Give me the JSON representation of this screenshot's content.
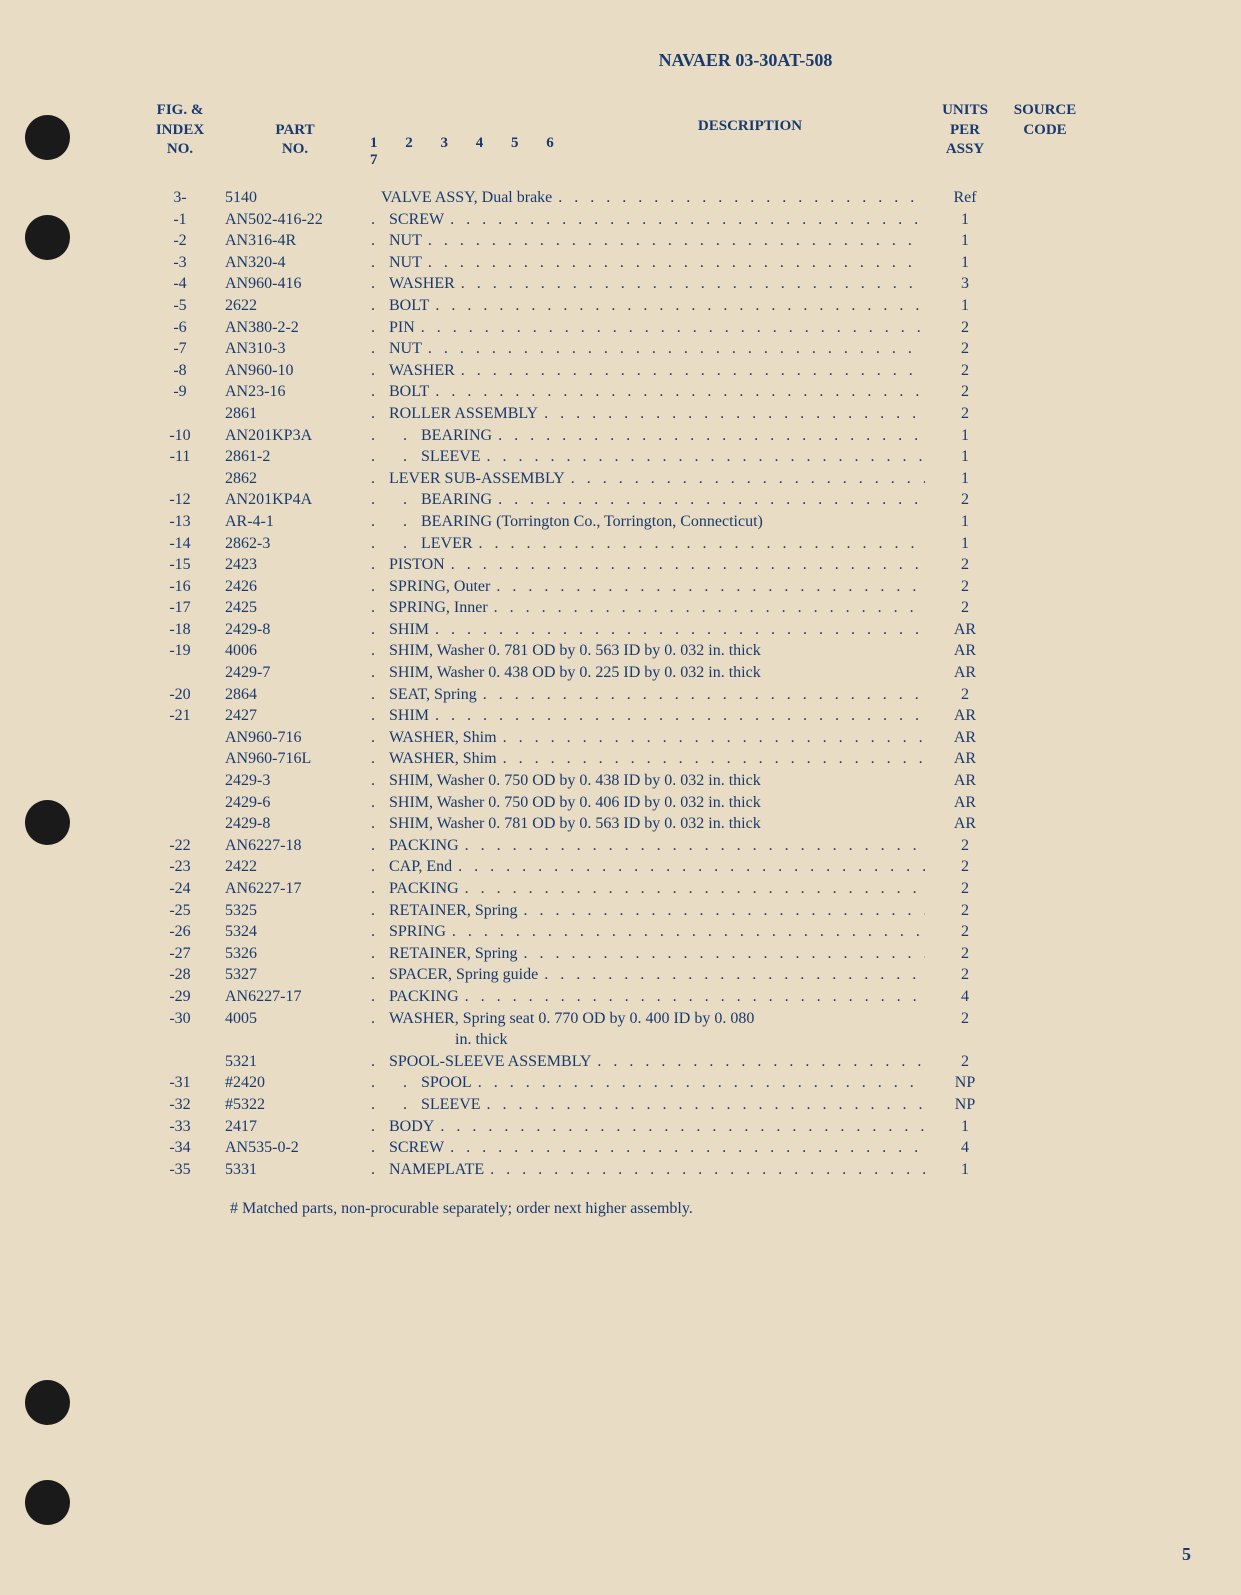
{
  "document_header": "NAVAER 03-30AT-508",
  "headers": {
    "fig": "FIG. &\nINDEX\nNO.",
    "part": "PART\nNO.",
    "description": "DESCRIPTION",
    "indent_nums": "1 2 3 4 5 6 7",
    "units": "UNITS\nPER\nASSY",
    "source": "SOURCE\nCODE"
  },
  "rows": [
    {
      "fig": "3-",
      "part": "5140",
      "indent": 1,
      "desc": "VALVE ASSY, Dual brake",
      "dots": true,
      "units": "Ref",
      "source": ""
    },
    {
      "fig": "-1",
      "part": "AN502-416-22",
      "indent": 2,
      "desc": "SCREW",
      "dots": true,
      "units": "1",
      "source": ""
    },
    {
      "fig": "-2",
      "part": "AN316-4R",
      "indent": 2,
      "desc": "NUT",
      "dots": true,
      "units": "1",
      "source": ""
    },
    {
      "fig": "-3",
      "part": "AN320-4",
      "indent": 2,
      "desc": "NUT",
      "dots": true,
      "units": "1",
      "source": ""
    },
    {
      "fig": "-4",
      "part": "AN960-416",
      "indent": 2,
      "desc": "WASHER",
      "dots": true,
      "units": "3",
      "source": ""
    },
    {
      "fig": "-5",
      "part": "2622",
      "indent": 2,
      "desc": "BOLT",
      "dots": true,
      "units": "1",
      "source": ""
    },
    {
      "fig": "-6",
      "part": "AN380-2-2",
      "indent": 2,
      "desc": "PIN",
      "dots": true,
      "units": "2",
      "source": ""
    },
    {
      "fig": "-7",
      "part": "AN310-3",
      "indent": 2,
      "desc": "NUT",
      "dots": true,
      "units": "2",
      "source": ""
    },
    {
      "fig": "-8",
      "part": "AN960-10",
      "indent": 2,
      "desc": "WASHER",
      "dots": true,
      "units": "2",
      "source": ""
    },
    {
      "fig": "-9",
      "part": "AN23-16",
      "indent": 2,
      "desc": "BOLT",
      "dots": true,
      "units": "2",
      "source": ""
    },
    {
      "fig": "",
      "part": "2861",
      "indent": 2,
      "desc": "ROLLER ASSEMBLY",
      "dots": true,
      "units": "2",
      "source": ""
    },
    {
      "fig": "-10",
      "part": "AN201KP3A",
      "indent": 3,
      "desc": "BEARING",
      "dots": true,
      "units": "1",
      "source": ""
    },
    {
      "fig": "-11",
      "part": "2861-2",
      "indent": 3,
      "desc": "SLEEVE",
      "dots": true,
      "units": "1",
      "source": ""
    },
    {
      "fig": "",
      "part": "2862",
      "indent": 2,
      "desc": "LEVER SUB-ASSEMBLY",
      "dots": true,
      "units": "1",
      "source": ""
    },
    {
      "fig": "-12",
      "part": "AN201KP4A",
      "indent": 3,
      "desc": "BEARING",
      "dots": true,
      "units": "2",
      "source": ""
    },
    {
      "fig": "-13",
      "part": "AR-4-1",
      "indent": 3,
      "desc": "BEARING (Torrington Co., Torrington, Connecticut)",
      "dots": false,
      "units": "1",
      "source": ""
    },
    {
      "fig": "-14",
      "part": "2862-3",
      "indent": 3,
      "desc": "LEVER",
      "dots": true,
      "units": "1",
      "source": ""
    },
    {
      "fig": "-15",
      "part": "2423",
      "indent": 2,
      "desc": "PISTON",
      "dots": true,
      "units": "2",
      "source": ""
    },
    {
      "fig": "-16",
      "part": "2426",
      "indent": 2,
      "desc": "SPRING, Outer",
      "dots": true,
      "units": "2",
      "source": ""
    },
    {
      "fig": "-17",
      "part": "2425",
      "indent": 2,
      "desc": "SPRING, Inner",
      "dots": true,
      "units": "2",
      "source": ""
    },
    {
      "fig": "-18",
      "part": "2429-8",
      "indent": 2,
      "desc": "SHIM",
      "dots": true,
      "units": "AR",
      "source": ""
    },
    {
      "fig": "-19",
      "part": "4006",
      "indent": 2,
      "desc": "SHIM, Washer 0. 781 OD by 0. 563 ID by 0. 032 in. thick",
      "dots": false,
      "units": "AR",
      "source": ""
    },
    {
      "fig": "",
      "part": "2429-7",
      "indent": 2,
      "desc": "SHIM, Washer 0. 438 OD by 0. 225 ID by 0. 032 in. thick",
      "dots": false,
      "units": "AR",
      "source": ""
    },
    {
      "fig": "-20",
      "part": "2864",
      "indent": 2,
      "desc": "SEAT, Spring",
      "dots": true,
      "units": "2",
      "source": ""
    },
    {
      "fig": "-21",
      "part": "2427",
      "indent": 2,
      "desc": "SHIM",
      "dots": true,
      "units": "AR",
      "source": ""
    },
    {
      "fig": "",
      "part": "AN960-716",
      "indent": 2,
      "desc": "WASHER, Shim",
      "dots": true,
      "units": "AR",
      "source": ""
    },
    {
      "fig": "",
      "part": "AN960-716L",
      "indent": 2,
      "desc": "WASHER, Shim",
      "dots": true,
      "units": "AR",
      "source": ""
    },
    {
      "fig": "",
      "part": "2429-3",
      "indent": 2,
      "desc": "SHIM, Washer 0. 750 OD by 0. 438 ID by 0. 032 in. thick",
      "dots": false,
      "units": "AR",
      "source": ""
    },
    {
      "fig": "",
      "part": "2429-6",
      "indent": 2,
      "desc": "SHIM, Washer 0. 750 OD by 0. 406 ID by 0. 032 in. thick",
      "dots": false,
      "units": "AR",
      "source": ""
    },
    {
      "fig": "",
      "part": "2429-8",
      "indent": 2,
      "desc": "SHIM, Washer 0. 781 OD by 0. 563 ID by 0. 032 in. thick",
      "dots": false,
      "units": "AR",
      "source": ""
    },
    {
      "fig": "-22",
      "part": "AN6227-18",
      "indent": 2,
      "desc": "PACKING",
      "dots": true,
      "units": "2",
      "source": ""
    },
    {
      "fig": "-23",
      "part": "2422",
      "indent": 2,
      "desc": "CAP, End",
      "dots": true,
      "units": "2",
      "source": ""
    },
    {
      "fig": "-24",
      "part": "AN6227-17",
      "indent": 2,
      "desc": "PACKING",
      "dots": true,
      "units": "2",
      "source": ""
    },
    {
      "fig": "-25",
      "part": "5325",
      "indent": 2,
      "desc": "RETAINER, Spring",
      "dots": true,
      "units": "2",
      "source": ""
    },
    {
      "fig": "-26",
      "part": "5324",
      "indent": 2,
      "desc": "SPRING",
      "dots": true,
      "units": "2",
      "source": ""
    },
    {
      "fig": "-27",
      "part": "5326",
      "indent": 2,
      "desc": "RETAINER, Spring",
      "dots": true,
      "units": "2",
      "source": ""
    },
    {
      "fig": "-28",
      "part": "5327",
      "indent": 2,
      "desc": "SPACER, Spring guide",
      "dots": true,
      "units": "2",
      "source": ""
    },
    {
      "fig": "-29",
      "part": "AN6227-17",
      "indent": 2,
      "desc": "PACKING",
      "dots": true,
      "units": "4",
      "source": ""
    },
    {
      "fig": "-30",
      "part": "4005",
      "indent": 2,
      "desc": "WASHER, Spring seat 0. 770 OD by 0. 400 ID by 0. 080",
      "dots": false,
      "units": "2",
      "source": "",
      "continuation": "in. thick"
    },
    {
      "fig": "",
      "part": "5321",
      "indent": 2,
      "desc": "SPOOL-SLEEVE ASSEMBLY",
      "dots": true,
      "units": "2",
      "source": ""
    },
    {
      "fig": "-31",
      "part": "#2420",
      "indent": 3,
      "desc": "SPOOL",
      "dots": true,
      "units": "NP",
      "source": ""
    },
    {
      "fig": "-32",
      "part": "#5322",
      "indent": 3,
      "desc": "SLEEVE",
      "dots": true,
      "units": "NP",
      "source": ""
    },
    {
      "fig": "-33",
      "part": "2417",
      "indent": 2,
      "desc": "BODY",
      "dots": true,
      "units": "1",
      "source": ""
    },
    {
      "fig": "-34",
      "part": "AN535-0-2",
      "indent": 2,
      "desc": "SCREW",
      "dots": true,
      "units": "4",
      "source": ""
    },
    {
      "fig": "-35",
      "part": "5331",
      "indent": 2,
      "desc": "NAMEPLATE",
      "dots": true,
      "units": "1",
      "source": ""
    }
  ],
  "footnote": "# Matched parts, non-procurable separately; order next higher assembly.",
  "page_number": "5"
}
